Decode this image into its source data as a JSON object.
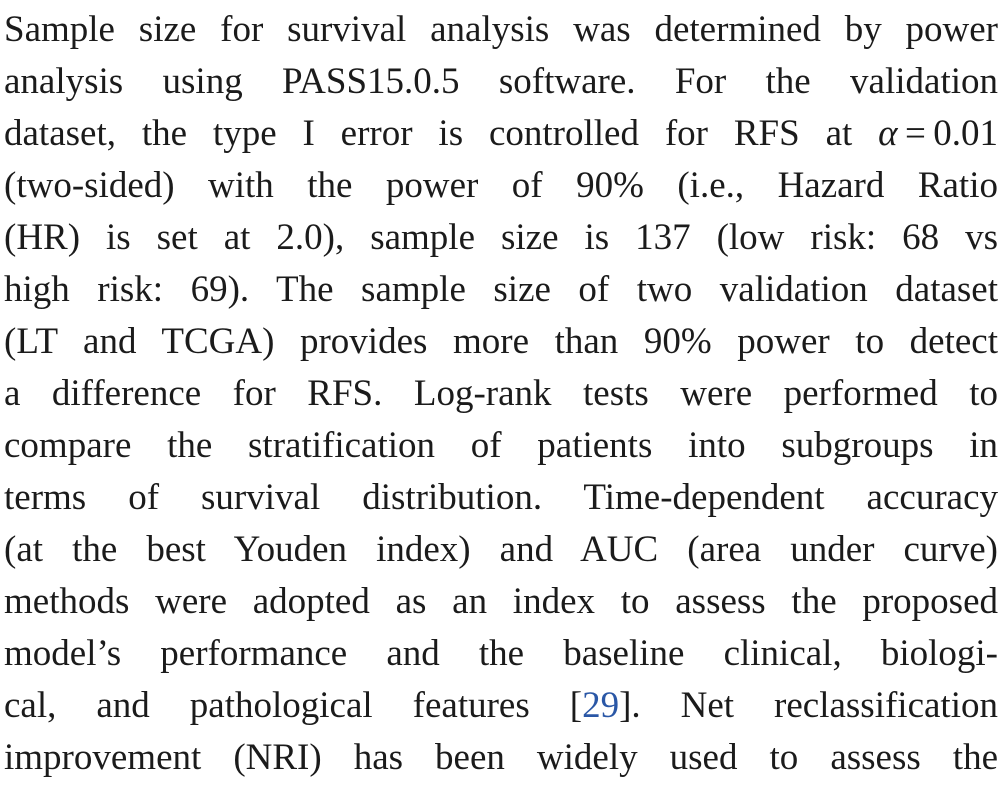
{
  "paragraph": {
    "lines": [
      "Sample size for survival analysis was determined by power",
      "analysis using PASS15.0.5 software. For the validation",
      "dataset, the type I error is controlled for RFS at α = 0.01",
      "(two-sided) with the power of 90% (i.e., Hazard Ratio",
      "(HR) is set at 2.0), sample size is 137 (low risk: 68 vs",
      "high risk: 69). The sample size of two validation dataset",
      "(LT and TCGA) provides more than 90% power to detect",
      "a difference for RFS. Log-rank tests were performed to",
      "compare the stratification of patients into subgroups in",
      "terms of survival distribution. Time-dependent accuracy",
      "(at the best Youden index) and AUC (area under curve)",
      "methods were adopted as an index to assess the proposed",
      "model’s performance and the baseline clinical, biologi-",
      "cal, and pathological features [29]. Net reclassification",
      "improvement (NRI) has been widely used to assess the"
    ],
    "alpha_line": {
      "before": "dataset, the type I error is controlled for RFS at ",
      "symbol": "α",
      "after": " = 0.01"
    },
    "citation_line": {
      "before": "cal, and pathological features [",
      "ref": "29",
      "after": "]. Net reclassification"
    }
  },
  "colors": {
    "text": "#1b1b1b",
    "citation_link": "#2a57a6",
    "background": "#ffffff"
  }
}
